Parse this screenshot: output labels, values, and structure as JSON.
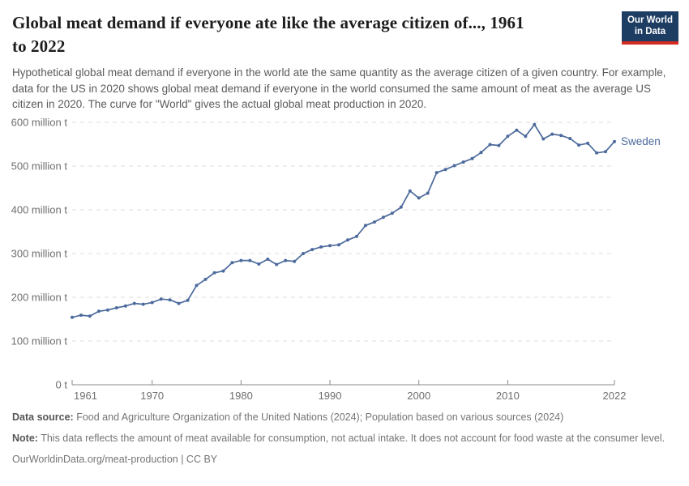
{
  "header": {
    "title": "Global meat demand if everyone ate like the average citizen of..., 1961 to 2022",
    "subtitle": "Hypothetical global meat demand if everyone in the world ate the same quantity as the average citizen of a given country. For example, data for the US in 2020 shows global meat demand if everyone in the world consumed the same amount of meat as the average US citizen in 2020. The curve for \"World\" gives the actual global meat production in 2020.",
    "logo": {
      "line1": "Our World",
      "line2": "in Data"
    }
  },
  "colors": {
    "line": "#4C6A9C",
    "grid": "#dcdcdc",
    "axis": "#8a8a8a",
    "tick_text": "#6f6f6f",
    "logo_bg": "#1d3d63",
    "logo_accent": "#d42b21"
  },
  "chart_data": {
    "type": "line",
    "title": "Global meat demand if everyone ate like the average citizen of..., 1961 to 2022",
    "unit": "million t",
    "xlabel": "",
    "ylabel": "",
    "xlim": [
      1961,
      2022
    ],
    "ylim": [
      0,
      600
    ],
    "grid": "horizontal-dashed",
    "legend_position": "end-of-line-label",
    "x_ticks": [
      1961,
      1970,
      1980,
      1990,
      2000,
      2010,
      2022
    ],
    "y_ticks": [
      {
        "value": 0,
        "label": "0 t"
      },
      {
        "value": 100,
        "label": "100 million t"
      },
      {
        "value": 200,
        "label": "200 million t"
      },
      {
        "value": 300,
        "label": "300 million t"
      },
      {
        "value": 400,
        "label": "400 million t"
      },
      {
        "value": 500,
        "label": "500 million t"
      },
      {
        "value": 600,
        "label": "600 million t"
      }
    ],
    "series": [
      {
        "name": "Sweden",
        "color": "#4C6A9C",
        "x": [
          1961,
          1962,
          1963,
          1964,
          1965,
          1966,
          1967,
          1968,
          1969,
          1970,
          1971,
          1972,
          1973,
          1974,
          1975,
          1976,
          1977,
          1978,
          1979,
          1980,
          1981,
          1982,
          1983,
          1984,
          1985,
          1986,
          1987,
          1988,
          1989,
          1990,
          1991,
          1992,
          1993,
          1994,
          1995,
          1996,
          1997,
          1998,
          1999,
          2000,
          2001,
          2002,
          2003,
          2004,
          2005,
          2006,
          2007,
          2008,
          2009,
          2010,
          2011,
          2012,
          2013,
          2014,
          2015,
          2016,
          2017,
          2018,
          2019,
          2020,
          2021,
          2022
        ],
        "values": [
          154,
          159,
          157,
          168,
          171,
          176,
          180,
          186,
          184,
          188,
          196,
          194,
          186,
          193,
          227,
          241,
          256,
          260,
          279,
          284,
          284,
          276,
          287,
          275,
          284,
          282,
          300,
          309,
          315,
          318,
          320,
          331,
          339,
          364,
          372,
          383,
          392,
          406,
          443,
          427,
          438,
          485,
          492,
          501,
          509,
          517,
          531,
          549,
          547,
          568,
          582,
          568,
          595,
          562,
          573,
          570,
          563,
          548,
          552,
          530,
          533,
          556
        ]
      }
    ]
  },
  "footer": {
    "data_source_label": "Data source:",
    "data_source_text": " Food and Agriculture Organization of the United Nations (2024); Population based on various sources (2024)",
    "note_label": "Note:",
    "note_text": " This data reflects the amount of meat available for consumption, not actual intake. It does not account for food waste at the consumer level.",
    "citation": "OurWorldinData.org/meat-production | CC BY"
  }
}
